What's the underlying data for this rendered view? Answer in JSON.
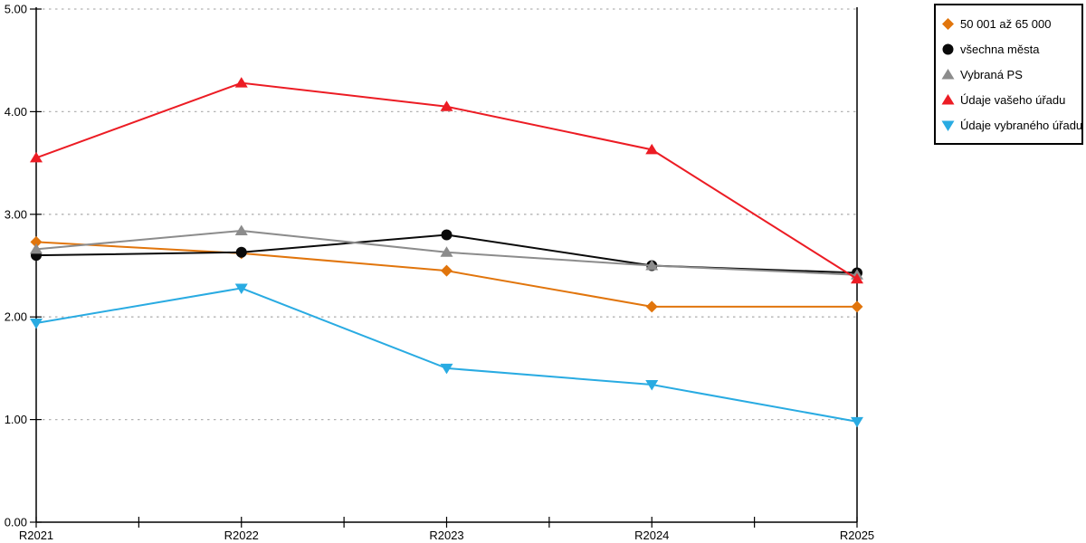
{
  "chart_data": {
    "type": "line",
    "title": "",
    "xlabel": "",
    "ylabel": "",
    "x": [
      "R2021",
      "R2022",
      "R2023",
      "R2024",
      "R2025"
    ],
    "series": [
      {
        "name": "50 001 až 65 000",
        "marker": "diamond",
        "color": "#e1750c",
        "values": [
          2.73,
          2.62,
          2.45,
          2.1,
          2.1
        ]
      },
      {
        "name": "všechna města",
        "marker": "circle",
        "color": "#0a0a0a",
        "values": [
          2.6,
          2.63,
          2.8,
          2.5,
          2.43
        ]
      },
      {
        "name": "Vybraná PS",
        "marker": "triangle-up",
        "color": "#8c8c8c",
        "values": [
          2.66,
          2.84,
          2.63,
          2.5,
          2.41
        ]
      },
      {
        "name": "Údaje vašeho úřadu",
        "marker": "triangle-up",
        "color": "#ec1c24",
        "values": [
          3.55,
          4.28,
          4.05,
          3.63,
          2.37
        ]
      },
      {
        "name": "Údaje vybraného úřadu",
        "marker": "triangle-down",
        "color": "#29abe2",
        "values": [
          1.94,
          2.28,
          1.5,
          1.34,
          0.98
        ]
      }
    ],
    "ylim": [
      0,
      5
    ],
    "ytick_step": 1,
    "y_tick_labels": [
      "0.00",
      "1.00",
      "2.00",
      "3.00",
      "4.00",
      "5.00"
    ],
    "x_minor_ticks_between_years": true,
    "grid": "horizontal-dotted",
    "legend_position": "top-right"
  },
  "colors": {
    "axis": "#000000",
    "grid": "#b3b3b3",
    "background": "#ffffff",
    "text": "#000000"
  }
}
